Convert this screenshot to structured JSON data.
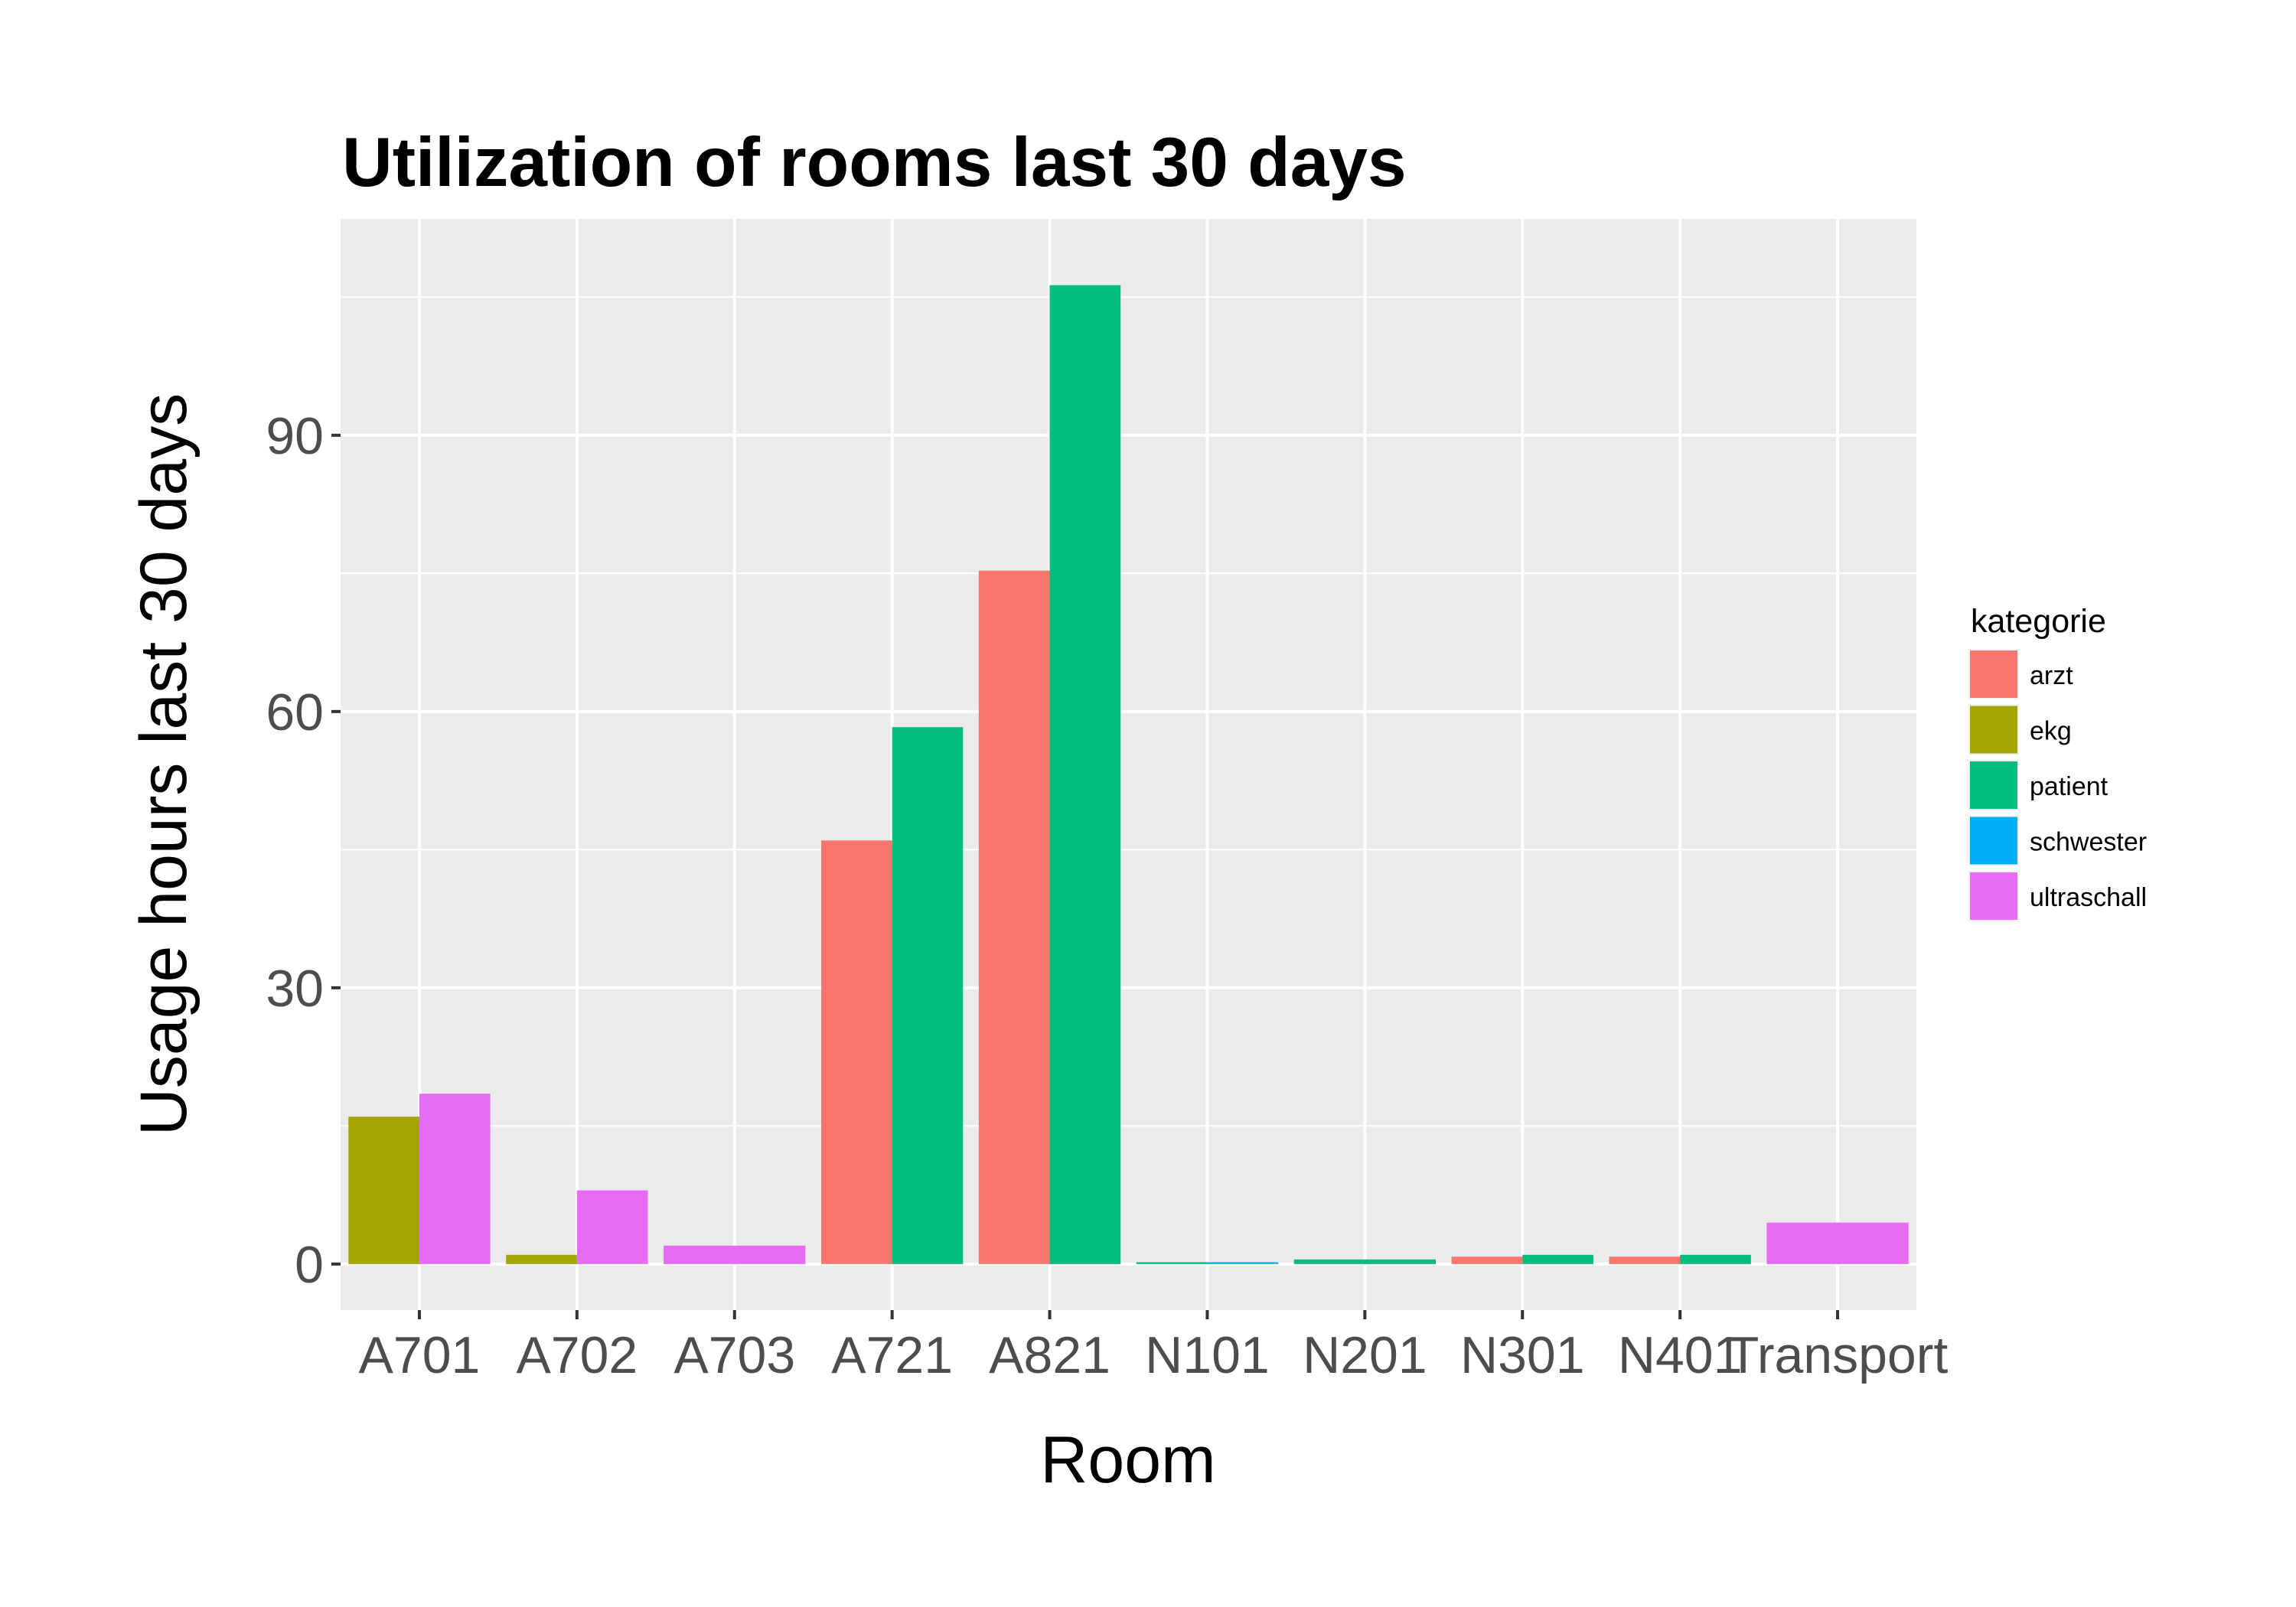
{
  "chart_data": {
    "type": "bar",
    "title": "Utilization of rooms last 30 days",
    "xlabel": "Room",
    "ylabel": "Usage hours last 30 days",
    "categories": [
      "A701",
      "A702",
      "A703",
      "A721",
      "A821",
      "N101",
      "N201",
      "N301",
      "N401",
      "Transport"
    ],
    "ylim": [
      -5,
      113.5
    ],
    "yticks": [
      0,
      30,
      60,
      90
    ],
    "grid": true,
    "legend": {
      "title": "kategorie",
      "position": "right",
      "items": [
        {
          "name": "arzt",
          "color": "#F8766D"
        },
        {
          "name": "ekg",
          "color": "#A3A500"
        },
        {
          "name": "patient",
          "color": "#00BF7D"
        },
        {
          "name": "schwester",
          "color": "#00B0F6"
        },
        {
          "name": "ultraschall",
          "color": "#E76BF3"
        }
      ]
    },
    "bars": [
      {
        "category": "A701",
        "groups": [
          {
            "kategorie": "ekg",
            "value": 16
          },
          {
            "kategorie": "ultraschall",
            "value": 18.5
          }
        ]
      },
      {
        "category": "A702",
        "groups": [
          {
            "kategorie": "ekg",
            "value": 1
          },
          {
            "kategorie": "ultraschall",
            "value": 8
          }
        ]
      },
      {
        "category": "A703",
        "groups": [
          {
            "kategorie": "ultraschall",
            "value": 2
          }
        ]
      },
      {
        "category": "A721",
        "groups": [
          {
            "kategorie": "arzt",
            "value": 46
          },
          {
            "kategorie": "patient",
            "value": 58.3
          }
        ]
      },
      {
        "category": "A821",
        "groups": [
          {
            "kategorie": "arzt",
            "value": 75.3
          },
          {
            "kategorie": "patient",
            "value": 106.3
          }
        ]
      },
      {
        "category": "N101",
        "groups": [
          {
            "kategorie": "patient",
            "value": 0.2
          },
          {
            "kategorie": "schwester",
            "value": 0.2
          }
        ]
      },
      {
        "category": "N201",
        "groups": [
          {
            "kategorie": "patient",
            "value": 0.5
          }
        ]
      },
      {
        "category": "N301",
        "groups": [
          {
            "kategorie": "arzt",
            "value": 0.8
          },
          {
            "kategorie": "patient",
            "value": 1
          }
        ]
      },
      {
        "category": "N401",
        "groups": [
          {
            "kategorie": "arzt",
            "value": 0.8
          },
          {
            "kategorie": "patient",
            "value": 1
          }
        ]
      },
      {
        "category": "Transport",
        "groups": [
          {
            "kategorie": "ultraschall",
            "value": 4.5
          }
        ]
      }
    ]
  }
}
